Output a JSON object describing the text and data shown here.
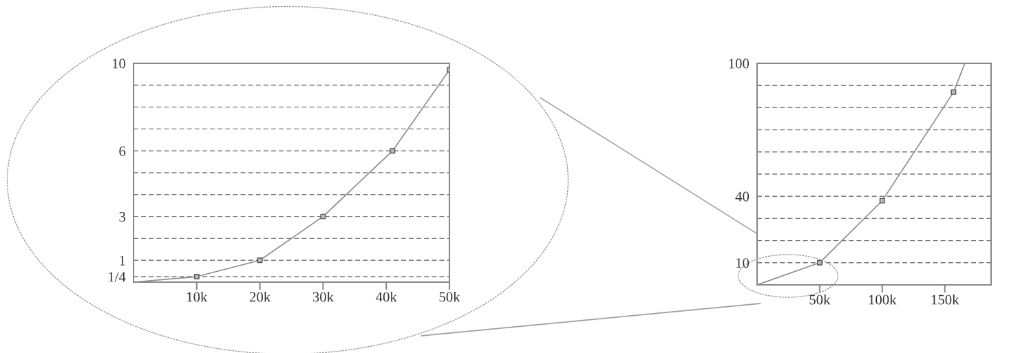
{
  "chart_data": [
    {
      "type": "line",
      "xlim": [
        0,
        50000
      ],
      "ylim": [
        0,
        10
      ],
      "xticks": [
        {
          "value": 10000,
          "label": "10k"
        },
        {
          "value": 20000,
          "label": "20k"
        },
        {
          "value": 30000,
          "label": "30k"
        },
        {
          "value": 40000,
          "label": "40k"
        },
        {
          "value": 50000,
          "label": "50k"
        }
      ],
      "yticks": [
        {
          "value": 0.25,
          "label": "1/4"
        },
        1,
        {
          "value": 2,
          "label": null
        },
        3,
        {
          "value": 4,
          "label": null
        },
        {
          "value": 5,
          "label": null
        },
        6,
        {
          "value": 7,
          "label": null
        },
        {
          "value": 8,
          "label": null
        },
        {
          "value": 9,
          "label": null
        },
        10
      ],
      "grid": "y",
      "series": [
        {
          "color": "#8c8c8c",
          "marker": "none",
          "x": [
            0,
            10000,
            20000,
            30000,
            41000,
            50000
          ],
          "values": [
            0,
            0.25,
            1,
            3,
            6,
            9.7
          ]
        },
        {
          "type": "scatter",
          "color": "#555555",
          "marker": "square",
          "x": [
            10000,
            20000,
            30000,
            41000,
            50000
          ],
          "values": [
            0.25,
            1,
            3,
            6,
            9.7
          ]
        }
      ]
    },
    {
      "type": "line",
      "xlim": [
        0,
        187000
      ],
      "ylim": [
        0,
        100
      ],
      "xticks": [
        {
          "value": 50000,
          "label": "50k"
        },
        {
          "value": 100000,
          "label": "100k"
        },
        {
          "value": 150000,
          "label": "150k"
        }
      ],
      "yticks": [
        10,
        {
          "value": 20,
          "label": null
        },
        {
          "value": 30,
          "label": null
        },
        40,
        {
          "value": 50,
          "label": null
        },
        {
          "value": 60,
          "label": null
        },
        {
          "value": 70,
          "label": null
        },
        {
          "value": 80,
          "label": null
        },
        {
          "value": 90,
          "label": null
        },
        100
      ],
      "grid": "y",
      "series": [
        {
          "color": "#8c8c8c",
          "marker": "none",
          "x": [
            0,
            50000,
            100000,
            157000,
            166000
          ],
          "values": [
            0,
            10,
            38,
            87,
            100
          ]
        },
        {
          "type": "scatter",
          "color": "#555555",
          "marker": "square",
          "x": [
            50000,
            100000,
            157000
          ],
          "values": [
            10,
            38,
            87
          ]
        }
      ]
    }
  ]
}
